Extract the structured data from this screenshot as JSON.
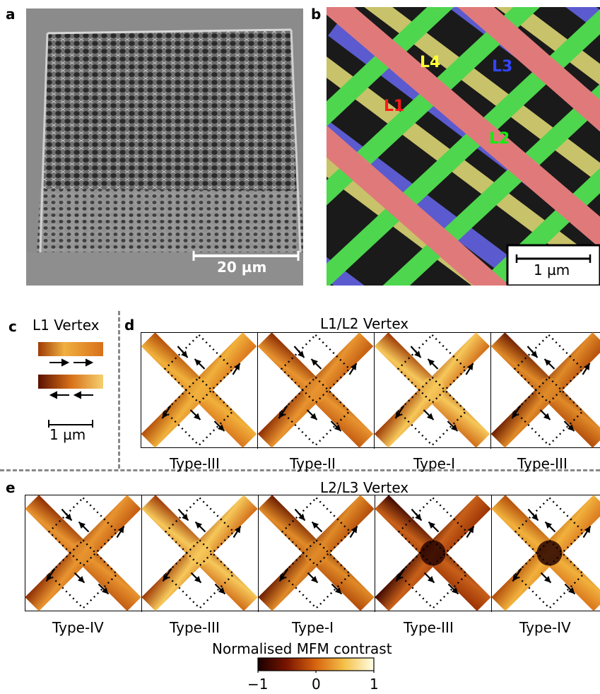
{
  "panels": {
    "a": {
      "label": "a",
      "scalebar": "20 µm"
    },
    "b": {
      "label": "b",
      "layers": [
        {
          "name": "L1",
          "color": "#ff2020"
        },
        {
          "name": "L2",
          "color": "#22dd22"
        },
        {
          "name": "L3",
          "color": "#3333dd"
        },
        {
          "name": "L4",
          "color": "#eeee22"
        }
      ],
      "scalebar": "1 µm"
    },
    "c": {
      "label": "c",
      "title": "L1 Vertex",
      "scalebar": "1 µm"
    },
    "d": {
      "label": "d",
      "title": "L1/L2 Vertex",
      "types": [
        "Type-III",
        "Type-II",
        "Type-I",
        "Type-III"
      ]
    },
    "e": {
      "label": "e",
      "title": "L2/L3 Vertex",
      "types": [
        "Type-IV",
        "Type-III",
        "Type-I",
        "Type-III",
        "Type-IV"
      ]
    }
  },
  "colorbar": {
    "title": "Normalised MFM contrast",
    "ticks": [
      "−1",
      "0",
      "1"
    ],
    "colors": [
      "#1a0000",
      "#7a1500",
      "#d8650f",
      "#f5c24a",
      "#ffffe8"
    ]
  }
}
